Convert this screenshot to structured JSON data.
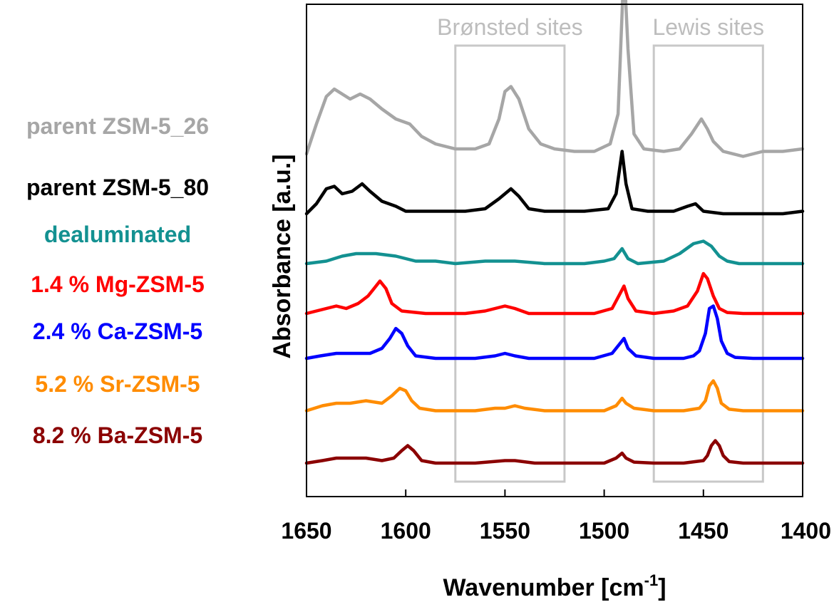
{
  "chart_data": {
    "type": "line",
    "xlabel": "Wavenumber [cm",
    "xlabel_sup": "-1",
    "xlabel_end": "]",
    "ylabel": "Absorbance [a.u.]",
    "xlim": [
      1650,
      1400
    ],
    "x_reversed": true,
    "x_ticks": [
      "1650",
      "1600",
      "1550",
      "1500",
      "1450",
      "1400"
    ],
    "y_ticks_shown": false,
    "grid": false,
    "legend_placement": "left",
    "regions": [
      {
        "label": "Brønsted sites",
        "x_from": 1575,
        "x_to": 1520
      },
      {
        "label": "Lewis sites",
        "x_from": 1475,
        "x_to": 1420
      }
    ],
    "series": [
      {
        "name": "parent ZSM-5_26",
        "color": "#a6a6a6",
        "offset": 6.1,
        "points": [
          [
            1650,
            0.1
          ],
          [
            1645,
            0.7
          ],
          [
            1640,
            1.25
          ],
          [
            1636,
            1.4
          ],
          [
            1632,
            1.3
          ],
          [
            1628,
            1.2
          ],
          [
            1623,
            1.3
          ],
          [
            1618,
            1.2
          ],
          [
            1612,
            1.0
          ],
          [
            1605,
            0.8
          ],
          [
            1598,
            0.7
          ],
          [
            1592,
            0.45
          ],
          [
            1585,
            0.3
          ],
          [
            1575,
            0.2
          ],
          [
            1565,
            0.2
          ],
          [
            1558,
            0.3
          ],
          [
            1553,
            0.8
          ],
          [
            1550,
            1.35
          ],
          [
            1547,
            1.45
          ],
          [
            1543,
            1.2
          ],
          [
            1538,
            0.6
          ],
          [
            1532,
            0.3
          ],
          [
            1525,
            0.2
          ],
          [
            1515,
            0.15
          ],
          [
            1505,
            0.15
          ],
          [
            1497,
            0.3
          ],
          [
            1493,
            0.9
          ],
          [
            1490,
            3.9
          ],
          [
            1488,
            2.2
          ],
          [
            1485,
            0.5
          ],
          [
            1480,
            0.2
          ],
          [
            1470,
            0.15
          ],
          [
            1462,
            0.2
          ],
          [
            1456,
            0.5
          ],
          [
            1451,
            0.8
          ],
          [
            1448,
            0.6
          ],
          [
            1445,
            0.35
          ],
          [
            1440,
            0.15
          ],
          [
            1430,
            0.05
          ],
          [
            1420,
            0.15
          ],
          [
            1410,
            0.15
          ],
          [
            1400,
            0.2
          ]
        ]
      },
      {
        "name": "parent ZSM-5_80",
        "color": "#000000",
        "offset": 5.0,
        "points": [
          [
            1650,
            0.0
          ],
          [
            1645,
            0.2
          ],
          [
            1640,
            0.5
          ],
          [
            1636,
            0.55
          ],
          [
            1632,
            0.4
          ],
          [
            1627,
            0.45
          ],
          [
            1622,
            0.6
          ],
          [
            1618,
            0.45
          ],
          [
            1612,
            0.25
          ],
          [
            1605,
            0.15
          ],
          [
            1600,
            0.05
          ],
          [
            1590,
            0.05
          ],
          [
            1570,
            0.05
          ],
          [
            1560,
            0.1
          ],
          [
            1553,
            0.3
          ],
          [
            1547,
            0.5
          ],
          [
            1543,
            0.35
          ],
          [
            1538,
            0.1
          ],
          [
            1530,
            0.05
          ],
          [
            1510,
            0.05
          ],
          [
            1498,
            0.1
          ],
          [
            1494,
            0.4
          ],
          [
            1491,
            1.25
          ],
          [
            1489,
            0.6
          ],
          [
            1486,
            0.1
          ],
          [
            1478,
            0.05
          ],
          [
            1465,
            0.05
          ],
          [
            1458,
            0.15
          ],
          [
            1454,
            0.2
          ],
          [
            1450,
            0.05
          ],
          [
            1440,
            0.0
          ],
          [
            1425,
            0.0
          ],
          [
            1410,
            0.0
          ],
          [
            1400,
            0.05
          ]
        ]
      },
      {
        "name": "dealuminated",
        "color": "#139191",
        "offset": 4.0,
        "points": [
          [
            1650,
            0.0
          ],
          [
            1640,
            0.05
          ],
          [
            1632,
            0.15
          ],
          [
            1625,
            0.2
          ],
          [
            1615,
            0.2
          ],
          [
            1605,
            0.15
          ],
          [
            1595,
            0.05
          ],
          [
            1585,
            0.05
          ],
          [
            1575,
            0.0
          ],
          [
            1560,
            0.05
          ],
          [
            1545,
            0.05
          ],
          [
            1530,
            0.0
          ],
          [
            1510,
            0.0
          ],
          [
            1500,
            0.05
          ],
          [
            1495,
            0.1
          ],
          [
            1491,
            0.3
          ],
          [
            1488,
            0.1
          ],
          [
            1483,
            0.0
          ],
          [
            1470,
            0.05
          ],
          [
            1462,
            0.2
          ],
          [
            1455,
            0.4
          ],
          [
            1450,
            0.45
          ],
          [
            1446,
            0.35
          ],
          [
            1442,
            0.15
          ],
          [
            1438,
            0.05
          ],
          [
            1432,
            0.0
          ],
          [
            1420,
            0.0
          ],
          [
            1400,
            0.0
          ]
        ]
      },
      {
        "name": "1.4 % Mg-ZSM-5",
        "color": "#ff0000",
        "offset": 3.0,
        "points": [
          [
            1650,
            0.0
          ],
          [
            1640,
            0.1
          ],
          [
            1635,
            0.15
          ],
          [
            1630,
            0.1
          ],
          [
            1624,
            0.2
          ],
          [
            1619,
            0.35
          ],
          [
            1616,
            0.5
          ],
          [
            1613,
            0.65
          ],
          [
            1610,
            0.5
          ],
          [
            1607,
            0.2
          ],
          [
            1602,
            0.05
          ],
          [
            1590,
            0.0
          ],
          [
            1570,
            0.0
          ],
          [
            1560,
            0.05
          ],
          [
            1550,
            0.15
          ],
          [
            1545,
            0.1
          ],
          [
            1538,
            0.0
          ],
          [
            1520,
            0.0
          ],
          [
            1505,
            0.0
          ],
          [
            1496,
            0.1
          ],
          [
            1492,
            0.4
          ],
          [
            1490,
            0.55
          ],
          [
            1488,
            0.3
          ],
          [
            1484,
            0.05
          ],
          [
            1475,
            0.0
          ],
          [
            1465,
            0.05
          ],
          [
            1458,
            0.15
          ],
          [
            1453,
            0.45
          ],
          [
            1450,
            0.8
          ],
          [
            1448,
            0.7
          ],
          [
            1445,
            0.35
          ],
          [
            1442,
            0.1
          ],
          [
            1438,
            0.02
          ],
          [
            1430,
            0.0
          ],
          [
            1415,
            0.0
          ],
          [
            1400,
            0.0
          ]
        ]
      },
      {
        "name": "2.4 % Ca-ZSM-5",
        "color": "#0000ff",
        "offset": 2.1,
        "points": [
          [
            1650,
            0.0
          ],
          [
            1643,
            0.05
          ],
          [
            1635,
            0.1
          ],
          [
            1625,
            0.1
          ],
          [
            1618,
            0.1
          ],
          [
            1612,
            0.2
          ],
          [
            1608,
            0.4
          ],
          [
            1605,
            0.6
          ],
          [
            1602,
            0.5
          ],
          [
            1599,
            0.25
          ],
          [
            1595,
            0.05
          ],
          [
            1585,
            0.0
          ],
          [
            1565,
            0.0
          ],
          [
            1555,
            0.05
          ],
          [
            1550,
            0.1
          ],
          [
            1545,
            0.05
          ],
          [
            1538,
            0.0
          ],
          [
            1520,
            0.0
          ],
          [
            1505,
            0.0
          ],
          [
            1496,
            0.1
          ],
          [
            1492,
            0.3
          ],
          [
            1490,
            0.4
          ],
          [
            1488,
            0.2
          ],
          [
            1484,
            0.05
          ],
          [
            1475,
            0.0
          ],
          [
            1460,
            0.0
          ],
          [
            1455,
            0.05
          ],
          [
            1452,
            0.15
          ],
          [
            1449,
            0.5
          ],
          [
            1447,
            1.0
          ],
          [
            1445,
            1.05
          ],
          [
            1443,
            0.8
          ],
          [
            1441,
            0.35
          ],
          [
            1438,
            0.1
          ],
          [
            1434,
            0.02
          ],
          [
            1425,
            0.0
          ],
          [
            1410,
            0.0
          ],
          [
            1400,
            0.0
          ]
        ]
      },
      {
        "name": "5.2 % Sr-ZSM-5",
        "color": "#ff8c00",
        "offset": 1.05,
        "points": [
          [
            1650,
            0.0
          ],
          [
            1642,
            0.1
          ],
          [
            1635,
            0.15
          ],
          [
            1628,
            0.15
          ],
          [
            1620,
            0.2
          ],
          [
            1612,
            0.15
          ],
          [
            1607,
            0.3
          ],
          [
            1603,
            0.45
          ],
          [
            1600,
            0.4
          ],
          [
            1597,
            0.2
          ],
          [
            1593,
            0.05
          ],
          [
            1585,
            0.0
          ],
          [
            1565,
            0.0
          ],
          [
            1555,
            0.05
          ],
          [
            1550,
            0.05
          ],
          [
            1545,
            0.1
          ],
          [
            1540,
            0.05
          ],
          [
            1530,
            0.0
          ],
          [
            1510,
            0.0
          ],
          [
            1500,
            0.0
          ],
          [
            1494,
            0.1
          ],
          [
            1491,
            0.25
          ],
          [
            1489,
            0.15
          ],
          [
            1485,
            0.05
          ],
          [
            1475,
            0.0
          ],
          [
            1460,
            0.0
          ],
          [
            1452,
            0.05
          ],
          [
            1449,
            0.2
          ],
          [
            1447,
            0.5
          ],
          [
            1445,
            0.6
          ],
          [
            1443,
            0.45
          ],
          [
            1441,
            0.15
          ],
          [
            1437,
            0.03
          ],
          [
            1430,
            0.0
          ],
          [
            1415,
            0.0
          ],
          [
            1400,
            0.0
          ]
        ]
      },
      {
        "name": "8.2 % Ba-ZSM-5",
        "color": "#8b0000",
        "offset": 0.0,
        "points": [
          [
            1650,
            0.0
          ],
          [
            1642,
            0.05
          ],
          [
            1635,
            0.1
          ],
          [
            1628,
            0.1
          ],
          [
            1620,
            0.1
          ],
          [
            1612,
            0.05
          ],
          [
            1606,
            0.1
          ],
          [
            1602,
            0.25
          ],
          [
            1599,
            0.35
          ],
          [
            1596,
            0.25
          ],
          [
            1592,
            0.05
          ],
          [
            1585,
            0.0
          ],
          [
            1565,
            0.0
          ],
          [
            1550,
            0.05
          ],
          [
            1545,
            0.05
          ],
          [
            1535,
            0.0
          ],
          [
            1510,
            0.0
          ],
          [
            1500,
            0.0
          ],
          [
            1494,
            0.1
          ],
          [
            1491,
            0.2
          ],
          [
            1489,
            0.1
          ],
          [
            1485,
            0.02
          ],
          [
            1475,
            0.0
          ],
          [
            1460,
            0.0
          ],
          [
            1450,
            0.05
          ],
          [
            1448,
            0.15
          ],
          [
            1446,
            0.35
          ],
          [
            1444,
            0.45
          ],
          [
            1442,
            0.35
          ],
          [
            1440,
            0.15
          ],
          [
            1437,
            0.03
          ],
          [
            1430,
            0.0
          ],
          [
            1415,
            0.0
          ],
          [
            1400,
            0.0
          ]
        ]
      }
    ]
  }
}
